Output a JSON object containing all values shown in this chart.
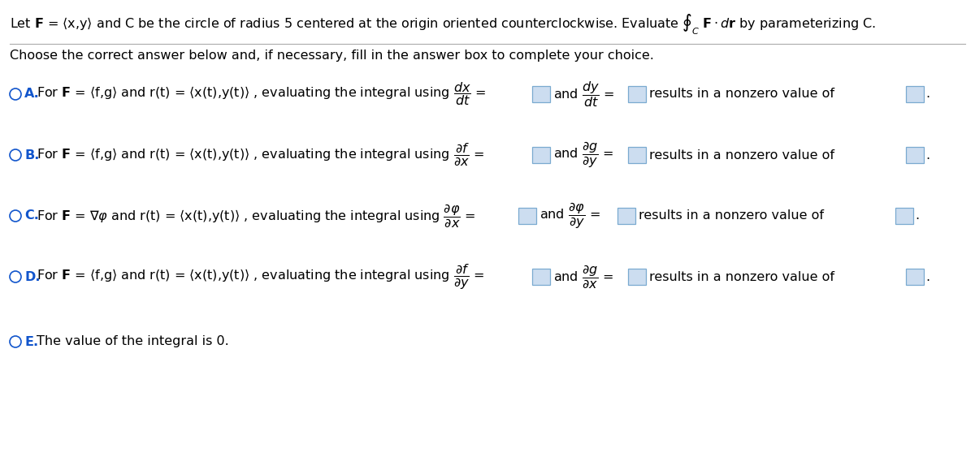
{
  "bg_color": "#ffffff",
  "text_color": "#000000",
  "blue_color": "#1155CC",
  "box_color": "#ccddf0",
  "box_edge": "#7aaad0",
  "fig_width": 12.0,
  "fig_height": 5.84,
  "title_text": "Let F = $\\langle$x,y$\\rangle$ and C be the circle of radius 5 centered at the origin oriented counterclockwise. Evaluate $\\oint_C$ F$\\cdot$dr by parameterizing C.",
  "subtitle_text": "Choose the correct answer below and, if necessary, fill in the answer box to complete your choice.",
  "option_A_label": "A.",
  "option_A_text": "For F = $\\langle$f,g$\\rangle$ and r(t) = $\\langle$x(t),y(t)$\\rangle$ , evaluating the integral using $\\dfrac{dx}{dt}$ =",
  "option_A_mid": "and $\\dfrac{dy}{dt}$ =",
  "option_A_end": "results in a nonzero value of",
  "option_B_label": "B.",
  "option_B_text": "For F = $\\langle$f,g$\\rangle$ and r(t) = $\\langle$x(t),y(t)$\\rangle$ , evaluating the integral using $\\dfrac{\\partial f}{\\partial x}$ =",
  "option_B_mid": "and $\\dfrac{\\partial g}{\\partial y}$ =",
  "option_B_end": "results in a nonzero value of",
  "option_C_label": "C.",
  "option_C_text": "For F = $\\nabla\\varphi$ and r(t) = $\\langle$x(t),y(t)$\\rangle$ , evaluating the integral using $\\dfrac{\\partial \\varphi}{\\partial x}$ =",
  "option_C_mid": "and $\\dfrac{\\partial \\varphi}{\\partial y}$ =",
  "option_C_end": "results in a nonzero value of",
  "option_D_label": "D.",
  "option_D_text": "For F = $\\langle$f,g$\\rangle$ and r(t) = $\\langle$x(t),y(t)$\\rangle$ , evaluating the integral using $\\dfrac{\\partial f}{\\partial y}$ =",
  "option_D_mid": "and $\\dfrac{\\partial g}{\\partial x}$ =",
  "option_D_end": "results in a nonzero value of",
  "option_E_label": "E.",
  "option_E_text": "The value of the integral is 0."
}
